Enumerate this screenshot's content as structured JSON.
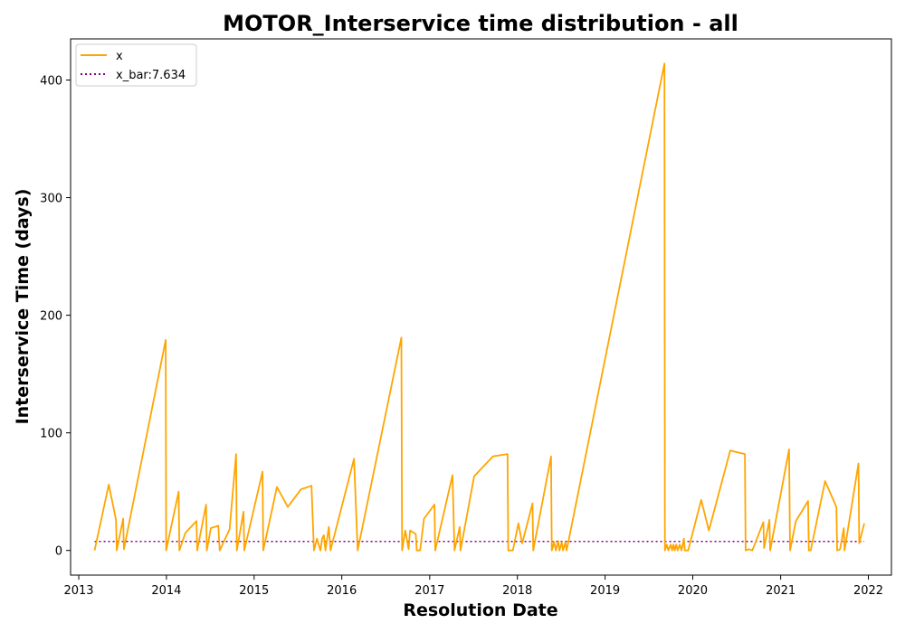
{
  "chart_data": {
    "type": "line",
    "title": "MOTOR_Interservice time distribution - all",
    "xlabel": "Resolution Date",
    "ylabel": "Interservice Time (days)",
    "xlim": [
      "2012-11-28",
      "2022-04-07"
    ],
    "ylim": [
      -21,
      435
    ],
    "x_ticks": [
      "2013",
      "2014",
      "2015",
      "2016",
      "2017",
      "2018",
      "2019",
      "2020",
      "2021",
      "2022"
    ],
    "y_ticks": [
      0,
      100,
      200,
      300,
      400
    ],
    "grid": false,
    "legend_position": "top-left",
    "colors": {
      "x": "#ffa500",
      "x_bar": "#800080"
    },
    "series": [
      {
        "name": "x",
        "style": "solid",
        "points": [
          [
            "2013-03-08",
            0
          ],
          [
            "2013-05-06",
            56
          ],
          [
            "2013-06-05",
            26
          ],
          [
            "2013-06-08",
            0
          ],
          [
            "2013-07-05",
            27
          ],
          [
            "2013-07-08",
            1
          ],
          [
            "2013-12-29",
            179
          ],
          [
            "2013-12-31",
            0
          ],
          [
            "2014-02-21",
            50
          ],
          [
            "2014-02-24",
            0
          ],
          [
            "2014-03-21",
            15
          ],
          [
            "2014-05-06",
            25
          ],
          [
            "2014-05-09",
            0
          ],
          [
            "2014-06-15",
            39
          ],
          [
            "2014-06-18",
            0
          ],
          [
            "2014-07-05",
            19
          ],
          [
            "2014-08-05",
            21
          ],
          [
            "2014-08-11",
            0
          ],
          [
            "2014-09-21",
            18
          ],
          [
            "2014-10-18",
            82
          ],
          [
            "2014-10-21",
            0
          ],
          [
            "2014-11-18",
            33
          ],
          [
            "2014-11-21",
            0
          ],
          [
            "2015-02-05",
            67
          ],
          [
            "2015-02-08",
            0
          ],
          [
            "2015-04-06",
            54
          ],
          [
            "2015-05-21",
            37
          ],
          [
            "2015-07-15",
            52
          ],
          [
            "2015-08-28",
            55
          ],
          [
            "2015-09-07",
            0
          ],
          [
            "2015-09-20",
            10
          ],
          [
            "2015-10-04",
            0
          ],
          [
            "2015-10-11",
            10
          ],
          [
            "2015-10-18",
            13
          ],
          [
            "2015-10-25",
            0
          ],
          [
            "2015-11-08",
            20
          ],
          [
            "2015-11-15",
            0
          ],
          [
            "2016-02-21",
            78
          ],
          [
            "2016-03-07",
            0
          ],
          [
            "2016-09-05",
            181
          ],
          [
            "2016-09-08",
            0
          ],
          [
            "2016-09-21",
            17
          ],
          [
            "2016-10-05",
            1
          ],
          [
            "2016-10-11",
            17
          ],
          [
            "2016-11-04",
            14
          ],
          [
            "2016-11-08",
            0
          ],
          [
            "2016-11-22",
            0
          ],
          [
            "2016-12-08",
            27
          ],
          [
            "2017-01-21",
            39
          ],
          [
            "2017-01-24",
            0
          ],
          [
            "2017-04-06",
            64
          ],
          [
            "2017-04-14",
            0
          ],
          [
            "2017-05-06",
            20
          ],
          [
            "2017-05-09",
            0
          ],
          [
            "2017-07-05",
            63
          ],
          [
            "2017-09-21",
            80
          ],
          [
            "2017-11-21",
            82
          ],
          [
            "2017-11-24",
            0
          ],
          [
            "2017-12-13",
            0
          ],
          [
            "2018-01-05",
            23
          ],
          [
            "2018-01-21",
            6
          ],
          [
            "2018-03-05",
            40
          ],
          [
            "2018-03-08",
            0
          ],
          [
            "2018-05-21",
            80
          ],
          [
            "2018-05-24",
            0
          ],
          [
            "2018-06-03",
            7
          ],
          [
            "2018-06-10",
            0
          ],
          [
            "2018-06-20",
            8
          ],
          [
            "2018-06-25",
            0
          ],
          [
            "2018-07-05",
            7
          ],
          [
            "2018-07-10",
            0
          ],
          [
            "2018-07-20",
            7
          ],
          [
            "2018-07-25",
            0
          ],
          [
            "2019-09-05",
            414
          ],
          [
            "2019-09-07",
            0
          ],
          [
            "2019-09-15",
            5
          ],
          [
            "2019-09-21",
            0
          ],
          [
            "2019-10-01",
            5
          ],
          [
            "2019-10-07",
            0
          ],
          [
            "2019-10-13",
            5
          ],
          [
            "2019-10-18",
            0
          ],
          [
            "2019-10-24",
            5
          ],
          [
            "2019-10-30",
            0
          ],
          [
            "2019-11-08",
            5
          ],
          [
            "2019-11-15",
            0
          ],
          [
            "2019-11-25",
            10
          ],
          [
            "2019-11-29",
            0
          ],
          [
            "2019-12-13",
            0
          ],
          [
            "2020-02-05",
            43
          ],
          [
            "2020-03-08",
            17
          ],
          [
            "2020-06-05",
            85
          ],
          [
            "2020-08-05",
            82
          ],
          [
            "2020-08-08",
            0
          ],
          [
            "2020-08-21",
            1
          ],
          [
            "2020-09-05",
            0
          ],
          [
            "2020-10-21",
            24
          ],
          [
            "2020-10-24",
            2
          ],
          [
            "2020-11-15",
            26
          ],
          [
            "2020-11-18",
            0
          ],
          [
            "2021-02-05",
            86
          ],
          [
            "2021-02-09",
            0
          ],
          [
            "2021-03-05",
            25
          ],
          [
            "2021-04-25",
            42
          ],
          [
            "2021-04-28",
            0
          ],
          [
            "2021-05-06",
            0
          ],
          [
            "2021-07-05",
            59
          ],
          [
            "2021-08-21",
            37
          ],
          [
            "2021-08-24",
            0
          ],
          [
            "2021-09-05",
            1
          ],
          [
            "2021-09-21",
            19
          ],
          [
            "2021-09-24",
            0
          ],
          [
            "2021-11-21",
            74
          ],
          [
            "2021-11-24",
            6
          ],
          [
            "2021-12-15",
            23
          ]
        ]
      },
      {
        "name": "x_bar:7.634",
        "style": "dotted",
        "value": 7.634,
        "x_range": [
          "2013-03-08",
          "2021-12-15"
        ]
      }
    ]
  }
}
